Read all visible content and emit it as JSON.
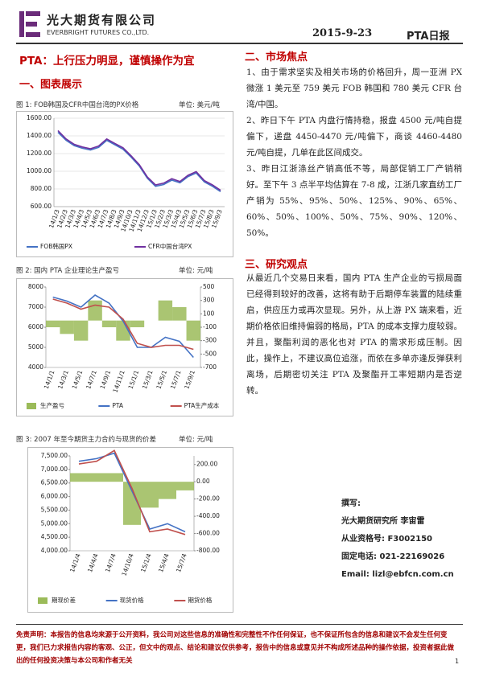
{
  "header": {
    "company_cn": "光大期货有限公司",
    "company_en": "EVERBRIGHT FUTURES CO.,LTD.",
    "date": "2015-9-23",
    "report": "PTA日报"
  },
  "headline": "PTA：上行压力明显，谨慎操作为宜",
  "section1": "一、图表展示",
  "figures": [
    {
      "caption": "图 1: FOB韩国及CFR中国台湾的PX价格",
      "unit": "单位: 美元/吨",
      "chart": {
        "type": "line",
        "grid": true,
        "categories": [
          "14/1/3",
          "14/2/3",
          "14/3/3",
          "14/4/3",
          "14/5/3",
          "14/6/3",
          "14/7/3",
          "14/8/3",
          "14/9/3",
          "14/10/3",
          "14/11/3",
          "14/12/3",
          "15/1/3",
          "15/2/3",
          "15/3/3",
          "15/4/3",
          "15/5/3",
          "15/6/3",
          "15/7/3",
          "15/8/3",
          "15/9/3"
        ],
        "ylim": [
          600,
          1600
        ],
        "yticks": [
          {
            "value": 600,
            "label": "600.00"
          },
          {
            "value": 800,
            "label": "800.00"
          },
          {
            "value": 1000,
            "label": "1000.00"
          },
          {
            "value": 1200,
            "label": "1200.00"
          },
          {
            "value": 1400,
            "label": "1400.00"
          },
          {
            "value": 1600,
            "label": "1600.00"
          }
        ],
        "series": [
          {
            "name": "FOB韩国PX",
            "color": "#4472c4",
            "kind": "line",
            "values": [
              1440,
              1350,
              1290,
              1260,
              1240,
              1270,
              1350,
              1300,
              1250,
              1160,
              1060,
              920,
              830,
              850,
              900,
              870,
              940,
              980,
              880,
              830,
              770
            ]
          },
          {
            "name": "CFR中国台湾PX",
            "color": "#7030a0",
            "kind": "line",
            "values": [
              1460,
              1365,
              1305,
              1275,
              1255,
              1285,
              1365,
              1315,
              1265,
              1175,
              1075,
              935,
              845,
              865,
              915,
              885,
              955,
              995,
              895,
              845,
              785
            ]
          }
        ]
      }
    },
    {
      "caption": "图 2: 国内 PTA 企业理论生产盈亏",
      "unit": "单位: 元/吨",
      "chart": {
        "type": "line",
        "grid": false,
        "categories": [
          "14/1/1",
          "14/3/1",
          "14/5/1",
          "14/7/1",
          "14/9/1",
          "14/11/1",
          "15/1/1",
          "15/3/1",
          "15/5/1",
          "15/7/1",
          "15/9/1"
        ],
        "ylim": [
          4000,
          8000
        ],
        "yticks": [
          4000,
          5000,
          6000,
          7000,
          8000
        ],
        "y2lim": [
          -700,
          500
        ],
        "y2ticks": [
          -700,
          -500,
          -300,
          -100,
          100,
          300,
          500
        ],
        "series": [
          {
            "name": "生产盈亏",
            "color": "#9bbb59",
            "kind": "area",
            "axis": "y2",
            "values": [
              -100,
              -200,
              -300,
              300,
              -100,
              -300,
              -100,
              0,
              300,
              200,
              -300
            ]
          },
          {
            "name": "PTA",
            "color": "#4472c4",
            "kind": "line",
            "values": [
              7500,
              7300,
              7000,
              7600,
              7200,
              6300,
              5000,
              5000,
              5500,
              5300,
              4500
            ]
          },
          {
            "name": "PTA生产成本",
            "color": "#c0504d",
            "kind": "line",
            "values": [
              7400,
              7200,
              6900,
              7100,
              7000,
              6400,
              5200,
              5000,
              5100,
              5100,
              4900
            ]
          }
        ]
      }
    },
    {
      "caption": "图 3: 2007 年至今期货主力合约与现货的价差",
      "unit": "单位: 元/吨",
      "chart": {
        "type": "line",
        "grid": false,
        "categories": [
          "14/1/4",
          "14/4/4",
          "14/7/4",
          "14/10/4",
          "15/1/4",
          "15/4/4",
          "15/7/4"
        ],
        "ylim": [
          4000,
          7500
        ],
        "yticks": [
          {
            "value": 4000,
            "label": "4,000.00"
          },
          {
            "value": 4500,
            "label": "4,500.00"
          },
          {
            "value": 5000,
            "label": "5,000.00"
          },
          {
            "value": 5500,
            "label": "5,500.00"
          },
          {
            "value": 6000,
            "label": "6,000.00"
          },
          {
            "value": 6500,
            "label": "6,500.00"
          },
          {
            "value": 7000,
            "label": "7,000.00"
          },
          {
            "value": 7500,
            "label": "7,500.00"
          }
        ],
        "y2lim": [
          -800,
          300
        ],
        "y2ticks": [
          {
            "value": -800,
            "label": "-800.00"
          },
          {
            "value": -600,
            "label": "-600.00"
          },
          {
            "value": -400,
            "label": "-400.00"
          },
          {
            "value": -200,
            "label": "-200.00"
          },
          {
            "value": 0,
            "label": "0.00"
          },
          {
            "value": 200,
            "label": "200.00"
          }
        ],
        "series": [
          {
            "name": "期现价差",
            "color": "#9bbb59",
            "kind": "area",
            "axis": "y2",
            "values": [
              100,
              100,
              100,
              -500,
              -300,
              -200,
              -100
            ]
          },
          {
            "name": "现货价格",
            "color": "#4472c4",
            "kind": "line",
            "values": [
              7300,
              7400,
              7600,
              6200,
              4800,
              5000,
              4700
            ]
          },
          {
            "name": "期货价格",
            "color": "#c0504d",
            "kind": "line",
            "values": [
              7200,
              7300,
              7700,
              6300,
              4700,
              4800,
              4600
            ]
          }
        ]
      }
    }
  ],
  "section2": "二、市场焦点",
  "focus": [
    "1、由于需求坚实及相关市场的价格回升，周一亚洲 PX 微涨 1 美元至 759 美元 FOB 韩国和 780 美元 CFR 台湾/中国。",
    "2、昨日下午 PTA 内盘行情持稳，报盘 4500 元/吨自提偏下，递盘 4450-4470 元/吨偏下，商谈 4460-4480 元/吨自提，几单在此区间成交。",
    "3、昨日江浙涤丝产销高低不等，局部促销工厂产销稍好。至下午 3 点半平均估算在 7-8 成，江浙几家直纺工厂产销为 55%、95%、50%、125%、90%、65%、60%、50%、100%、50%、75%、90%、120%、50%。"
  ],
  "section3": "三、研究观点",
  "view": "从最近几个交易日来看，国内 PTA 生产企业的亏损局面已经得到较好的改善，这将有助于后期停车装置的陆续重启，供应压力或再次显现。另外，从上游 PX 端来看，近期价格依旧维持偏弱的格局，PTA 的成本支撑力度较弱。并且，聚酯利润的恶化也对 PTA 的需求形成压制。因此，操作上，不建议高位追涨，而依在多单亦逢反弹获利离场，后期密切关注 PTA 及聚酯开工率短期内是否逆转。",
  "author": {
    "label": "撰写:",
    "name": "光大期货研究所 李宙雷",
    "license": "从业资格号: F3002150",
    "phone": "固定电话: 021-22169026",
    "email": "Email: lizl@ebfcn.com.cn"
  },
  "footer": {
    "disclaimer": "免责声明：本报告的信息均来源于公开资料，我公司对这些信息的准确性和完整性不作任何保证，也不保证所包含的信息和建议不会发生任何变更，我们已力求报告内容的客观、公正，但文中的观点、结论和建议仅供参考，报告中的信息或意见并不构成所述品种的操作依据，投资者据此做出的任何投资决策与本公司和作者无关",
    "page": "1"
  }
}
